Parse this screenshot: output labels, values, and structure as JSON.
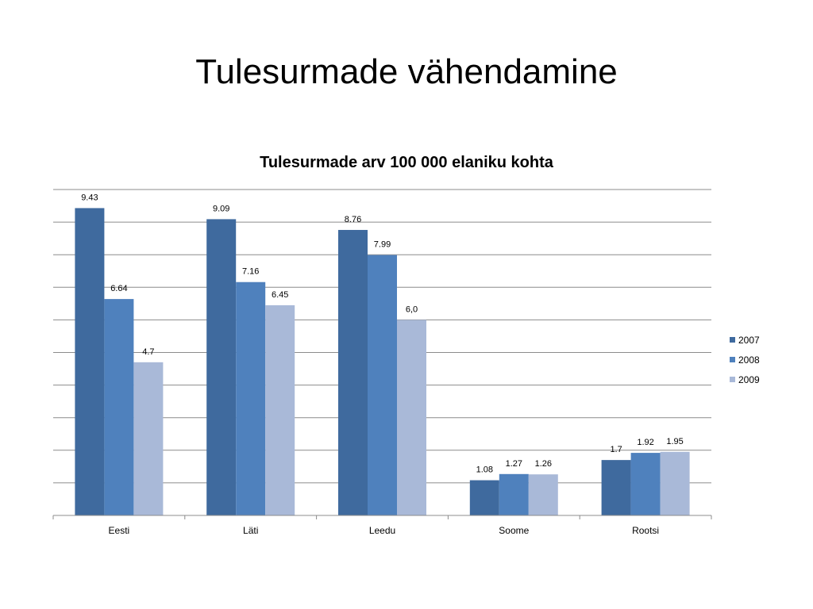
{
  "slide_title": "Tulesurmade vähendamine",
  "chart_data": {
    "type": "bar",
    "title": "Tulesurmade arv 100 000 elaniku kohta",
    "categories": [
      "Eesti",
      "Läti",
      "Leedu",
      "Soome",
      "Rootsi"
    ],
    "series": [
      {
        "name": "2007",
        "values": [
          9.43,
          9.09,
          8.76,
          1.08,
          1.7
        ],
        "labels": [
          "9.43",
          "9.09",
          "8.76",
          "1.08",
          "1.7"
        ],
        "color": "#3F6A9E"
      },
      {
        "name": "2008",
        "values": [
          6.64,
          7.16,
          7.99,
          1.27,
          1.92
        ],
        "labels": [
          "6.64",
          "7.16",
          "7.99",
          "1.27",
          "1.92"
        ],
        "color": "#4F81BD"
      },
      {
        "name": "2009",
        "values": [
          4.7,
          6.45,
          6.0,
          1.26,
          1.95
        ],
        "labels": [
          "4.7",
          "6.45",
          "6,0",
          "1.26",
          "1.95"
        ],
        "color": "#A9B9D8"
      }
    ],
    "ylim": [
      0,
      10
    ],
    "grid": true,
    "legend_position": "right"
  }
}
